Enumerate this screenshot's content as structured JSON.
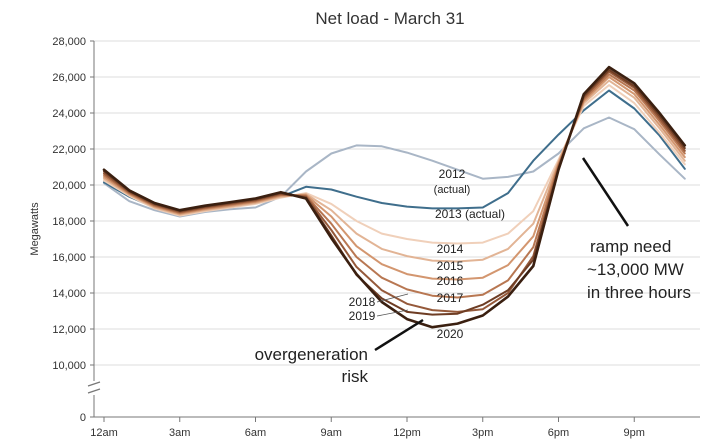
{
  "chart_data": {
    "type": "line",
    "title": "Net load - March 31",
    "xlabel": "",
    "ylabel": "Megawatts",
    "hours": [
      0,
      1,
      2,
      3,
      4,
      5,
      6,
      7,
      8,
      9,
      10,
      11,
      12,
      13,
      14,
      15,
      16,
      17,
      18,
      19,
      20,
      21,
      22,
      23
    ],
    "x_ticks": [
      {
        "hour": 0,
        "label": "12am"
      },
      {
        "hour": 3,
        "label": "3am"
      },
      {
        "hour": 6,
        "label": "6am"
      },
      {
        "hour": 9,
        "label": "9am"
      },
      {
        "hour": 12,
        "label": "12pm"
      },
      {
        "hour": 15,
        "label": "3pm"
      },
      {
        "hour": 18,
        "label": "6pm"
      },
      {
        "hour": 21,
        "label": "9pm"
      }
    ],
    "y_ticks": [
      {
        "value": 28000,
        "label": "28,000"
      },
      {
        "value": 26000,
        "label": "26,000"
      },
      {
        "value": 24000,
        "label": "24,000"
      },
      {
        "value": 22000,
        "label": "22,000"
      },
      {
        "value": 20000,
        "label": "20,000"
      },
      {
        "value": 18000,
        "label": "18,000"
      },
      {
        "value": 16000,
        "label": "16,000"
      },
      {
        "value": 14000,
        "label": "14,000"
      },
      {
        "value": 12000,
        "label": "12,000"
      },
      {
        "value": 10000,
        "label": "10,000"
      },
      {
        "value": 0,
        "label": "0"
      }
    ],
    "ylim": [
      0,
      28000
    ],
    "y_axis_break": true,
    "grid": true,
    "series": [
      {
        "name": "2012 (actual)",
        "color": "#a9b6c6",
        "values": [
          20100,
          19100,
          18600,
          18250,
          18500,
          18650,
          18750,
          19350,
          20750,
          21750,
          22200,
          22150,
          21800,
          21350,
          20850,
          20350,
          20450,
          20750,
          21750,
          23150,
          23750,
          23100,
          21700,
          20350
        ]
      },
      {
        "name": "2013 (actual)",
        "color": "#3f6e8c",
        "values": [
          20150,
          19350,
          18750,
          18350,
          18650,
          18800,
          19050,
          19350,
          19900,
          19750,
          19350,
          19000,
          18800,
          18700,
          18700,
          18750,
          19550,
          21350,
          22800,
          24150,
          25250,
          24250,
          22750,
          20900
        ]
      },
      {
        "name": "2014",
        "color": "#f0d0ba",
        "values": [
          20250,
          19400,
          18700,
          18300,
          18550,
          18750,
          18950,
          19300,
          19550,
          18950,
          18000,
          17300,
          17000,
          16800,
          16750,
          16800,
          17300,
          18550,
          21400,
          24400,
          25550,
          24550,
          22900,
          21150
        ]
      },
      {
        "name": "2015",
        "color": "#e2b495",
        "values": [
          20350,
          19450,
          18750,
          18350,
          18600,
          18800,
          19000,
          19350,
          19500,
          18600,
          17300,
          16450,
          16050,
          15800,
          15750,
          15850,
          16450,
          17850,
          21300,
          24550,
          25800,
          24850,
          23150,
          21350
        ]
      },
      {
        "name": "2016",
        "color": "#d3966f",
        "values": [
          20450,
          19500,
          18800,
          18400,
          18650,
          18850,
          19050,
          19400,
          19450,
          18250,
          16600,
          15600,
          15050,
          14800,
          14750,
          14850,
          15550,
          17150,
          21200,
          24650,
          26000,
          25050,
          23350,
          21550
        ]
      },
      {
        "name": "2017",
        "color": "#b87752",
        "values": [
          20550,
          19550,
          18850,
          18450,
          18700,
          18900,
          19100,
          19450,
          19400,
          17850,
          16000,
          14850,
          14200,
          13850,
          13750,
          13900,
          14700,
          16550,
          21100,
          24750,
          26150,
          25250,
          23550,
          21750
        ]
      },
      {
        "name": "2018",
        "color": "#95593a",
        "values": [
          20650,
          19600,
          18900,
          18500,
          18750,
          18950,
          19150,
          19500,
          19350,
          17500,
          15450,
          14150,
          13400,
          13050,
          12950,
          13100,
          14000,
          16050,
          21000,
          24850,
          26300,
          25400,
          23700,
          21900
        ]
      },
      {
        "name": "2019",
        "color": "#6e3d24",
        "values": [
          20750,
          19650,
          18950,
          18550,
          18800,
          19000,
          19200,
          19550,
          19300,
          17200,
          15000,
          13700,
          12950,
          12800,
          12850,
          13350,
          14150,
          15850,
          20900,
          24950,
          26400,
          25500,
          23850,
          22050
        ]
      },
      {
        "name": "2020",
        "color": "#3a1f10",
        "values": [
          20850,
          19700,
          19000,
          18600,
          18850,
          19050,
          19250,
          19600,
          19250,
          17050,
          15050,
          13500,
          12550,
          12100,
          12300,
          12750,
          13800,
          15500,
          20850,
          25050,
          26550,
          25650,
          24000,
          22200
        ]
      }
    ],
    "annotations": {
      "s2012_line1": "2012",
      "s2012_line2": "(actual)",
      "s2013": "2013 (actual)",
      "s2014": "2014",
      "s2015": "2015",
      "s2016": "2016",
      "s2017": "2017",
      "s2018": "2018",
      "s2019": "2019",
      "s2020": "2020",
      "ramp_line1": "ramp need",
      "ramp_line2": "~13,000 MW",
      "ramp_line3": "in three hours",
      "overgen_line1": "overgeneration",
      "overgen_line2": "risk"
    }
  }
}
